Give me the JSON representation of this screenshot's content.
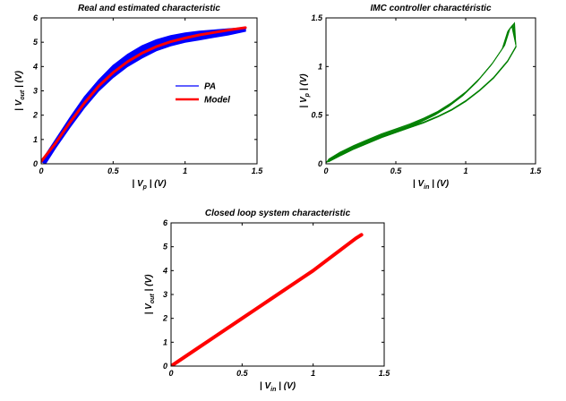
{
  "chart_data": [
    {
      "type": "line",
      "title": "Real and estimated characteristic",
      "xlabel": {
        "prefix": "| V",
        "sub": "p",
        "suffix": " | (V)"
      },
      "ylabel": {
        "prefix": "| V",
        "sub": "out",
        "suffix": " | (V)"
      },
      "xlim": [
        0,
        1.5
      ],
      "ylim": [
        0,
        6
      ],
      "xticks": [
        "0",
        "0.5",
        "1",
        "1.5"
      ],
      "yticks": [
        "0",
        "1",
        "2",
        "3",
        "4",
        "5",
        "6"
      ],
      "grid": false,
      "legend_position": "right",
      "series": [
        {
          "name": "PA",
          "color": "#0000ff",
          "style": "band",
          "upper": [
            [
              0,
              0.1
            ],
            [
              0.1,
              1.0
            ],
            [
              0.2,
              1.9
            ],
            [
              0.3,
              2.75
            ],
            [
              0.4,
              3.45
            ],
            [
              0.5,
              4.05
            ],
            [
              0.6,
              4.5
            ],
            [
              0.7,
              4.85
            ],
            [
              0.8,
              5.1
            ],
            [
              0.9,
              5.27
            ],
            [
              1.0,
              5.38
            ],
            [
              1.1,
              5.45
            ],
            [
              1.2,
              5.5
            ],
            [
              1.3,
              5.55
            ],
            [
              1.42,
              5.6
            ]
          ],
          "lower": [
            [
              0.03,
              0
            ],
            [
              0.1,
              0.65
            ],
            [
              0.2,
              1.5
            ],
            [
              0.3,
              2.3
            ],
            [
              0.4,
              3.0
            ],
            [
              0.5,
              3.55
            ],
            [
              0.6,
              4.0
            ],
            [
              0.7,
              4.35
            ],
            [
              0.8,
              4.65
            ],
            [
              0.9,
              4.85
            ],
            [
              1.0,
              5.0
            ],
            [
              1.1,
              5.1
            ],
            [
              1.2,
              5.2
            ],
            [
              1.3,
              5.3
            ],
            [
              1.42,
              5.45
            ]
          ]
        },
        {
          "name": "Model",
          "color": "#ff0000",
          "style": "line",
          "points": [
            [
              0,
              0.1
            ],
            [
              0.1,
              0.85
            ],
            [
              0.2,
              1.7
            ],
            [
              0.3,
              2.5
            ],
            [
              0.4,
              3.2
            ],
            [
              0.5,
              3.75
            ],
            [
              0.6,
              4.2
            ],
            [
              0.7,
              4.55
            ],
            [
              0.8,
              4.82
            ],
            [
              0.9,
              5.02
            ],
            [
              1.0,
              5.17
            ],
            [
              1.1,
              5.3
            ],
            [
              1.2,
              5.4
            ],
            [
              1.3,
              5.5
            ],
            [
              1.42,
              5.6
            ]
          ]
        }
      ]
    },
    {
      "type": "line",
      "title": "IMC controller charactéristic",
      "xlabel": {
        "prefix": "| V",
        "sub": "in",
        "suffix": " | (V)"
      },
      "ylabel": {
        "prefix": "| V",
        "sub": "p",
        "suffix": " | (V)"
      },
      "xlim": [
        0,
        1.5
      ],
      "ylim": [
        0,
        1.5
      ],
      "xticks": [
        "0",
        "0.5",
        "1",
        "1.5"
      ],
      "yticks": [
        "0",
        "0.5",
        "1",
        "1.5"
      ],
      "grid": false,
      "series": [
        {
          "color": "#008000",
          "style": "loops",
          "lower": [
            [
              0.02,
              0.02
            ],
            [
              0.1,
              0.08
            ],
            [
              0.2,
              0.15
            ],
            [
              0.3,
              0.21
            ],
            [
              0.4,
              0.27
            ],
            [
              0.5,
              0.32
            ],
            [
              0.6,
              0.37
            ],
            [
              0.7,
              0.42
            ],
            [
              0.8,
              0.48
            ],
            [
              0.9,
              0.55
            ],
            [
              1.0,
              0.64
            ],
            [
              1.1,
              0.75
            ],
            [
              1.2,
              0.88
            ],
            [
              1.3,
              1.05
            ],
            [
              1.36,
              1.2
            ]
          ],
          "upper": [
            [
              0.02,
              0.05
            ],
            [
              0.1,
              0.12
            ],
            [
              0.2,
              0.19
            ],
            [
              0.3,
              0.25
            ],
            [
              0.4,
              0.31
            ],
            [
              0.5,
              0.36
            ],
            [
              0.6,
              0.41
            ],
            [
              0.7,
              0.47
            ],
            [
              0.8,
              0.54
            ],
            [
              0.9,
              0.63
            ],
            [
              1.0,
              0.74
            ],
            [
              1.1,
              0.88
            ],
            [
              1.2,
              1.05
            ],
            [
              1.28,
              1.22
            ],
            [
              1.32,
              1.4
            ],
            [
              1.35,
              1.45
            ]
          ]
        }
      ]
    },
    {
      "type": "line",
      "title": "Closed loop system characteristic",
      "xlabel": {
        "prefix": "| V",
        "sub": "in",
        "suffix": " | (V)"
      },
      "ylabel": {
        "prefix": "| V",
        "sub": "out",
        "suffix": " | (V)"
      },
      "xlim": [
        0,
        1.5
      ],
      "ylim": [
        0,
        6
      ],
      "xticks": [
        "0",
        "0.5",
        "1",
        "1.5"
      ],
      "yticks": [
        "0",
        "1",
        "2",
        "3",
        "4",
        "5",
        "6"
      ],
      "grid": false,
      "series": [
        {
          "color": "#ff0000",
          "style": "thickline",
          "points": [
            [
              0,
              0
            ],
            [
              0.1,
              0.4
            ],
            [
              0.2,
              0.8
            ],
            [
              0.3,
              1.2
            ],
            [
              0.4,
              1.6
            ],
            [
              0.5,
              2.0
            ],
            [
              0.6,
              2.4
            ],
            [
              0.7,
              2.8
            ],
            [
              0.8,
              3.2
            ],
            [
              0.9,
              3.6
            ],
            [
              1.0,
              4.0
            ],
            [
              1.1,
              4.45
            ],
            [
              1.2,
              4.9
            ],
            [
              1.3,
              5.35
            ],
            [
              1.34,
              5.5
            ]
          ]
        }
      ]
    }
  ]
}
